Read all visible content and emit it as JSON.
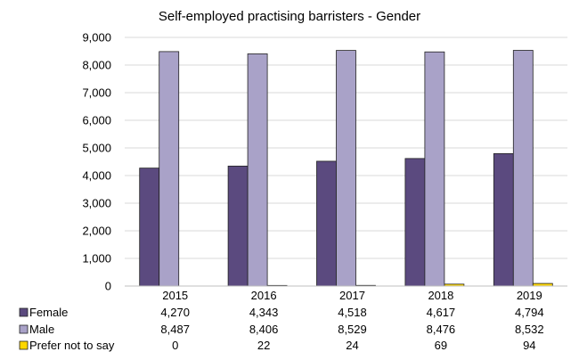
{
  "chart_data": {
    "type": "bar",
    "title": "Self-employed practising barristers - Gender",
    "categories": [
      "2015",
      "2016",
      "2017",
      "2018",
      "2019"
    ],
    "series": [
      {
        "name": "Female",
        "values": [
          4270,
          4343,
          4518,
          4617,
          4794
        ],
        "value_labels": [
          "4,270",
          "4,343",
          "4,518",
          "4,617",
          "4,794"
        ],
        "color": "#5b4a7f"
      },
      {
        "name": "Male",
        "values": [
          8487,
          8406,
          8529,
          8476,
          8532
        ],
        "value_labels": [
          "8,487",
          "8,406",
          "8,529",
          "8,476",
          "8,532"
        ],
        "color": "#a9a2c8"
      },
      {
        "name": "Prefer not to say",
        "values": [
          0,
          22,
          24,
          69,
          94
        ],
        "value_labels": [
          "0",
          "22",
          "24",
          "69",
          "94"
        ],
        "color": "#ffd700"
      }
    ],
    "ylim": [
      0,
      9000
    ],
    "y_ticks": [
      0,
      1000,
      2000,
      3000,
      4000,
      5000,
      6000,
      7000,
      8000,
      9000
    ],
    "y_tick_labels": [
      "0",
      "1,000",
      "2,000",
      "3,000",
      "4,000",
      "5,000",
      "6,000",
      "7,000",
      "8,000",
      "9,000"
    ],
    "grid": true,
    "legend": "data-table-below"
  }
}
